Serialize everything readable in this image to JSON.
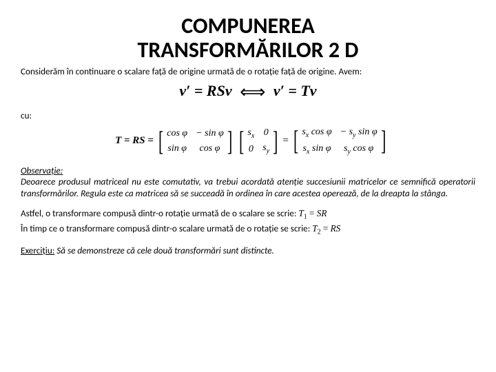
{
  "title_l1": "COMPUNEREA",
  "title_l2": "TRANSFORMĂRILOR 2 D",
  "intro": "Considerăm în continuare o scalare față de origine urmată de o rotație față de origine. Avem:",
  "formula1_left": "v′ = RSv",
  "formula1_right": "v′ = Tv",
  "cu": "cu:",
  "T_eq": "T = RS =",
  "m1_c1r1": "cos φ",
  "m1_c1r2": "sin φ",
  "m1_c2r1": "− sin φ",
  "m1_c2r2": "cos φ",
  "m2_c1r1": "sₓ",
  "m2_c1r2": "0",
  "m2_c2r1": "0",
  "m2_c2r2": "s_y",
  "eq": "=",
  "m3_c1r1": "sₓ cos φ",
  "m3_c1r2": "sₓ sin φ",
  "m3_c2r1": "− s_y sin φ",
  "m3_c2r2": "s_y cos φ",
  "obs_head": "Observație:",
  "obs_body": "Deoarece produsul matriceal nu este comutativ, va trebui acordată atenție succesiunii matricelor ce semnifică operatorii transformărilor. Regula este ca matricea să se succeadă în ordinea în care acestea operează, de la dreapta la stânga.",
  "line1": "Astfel, o transformare compusă dintr-o rotație urmată de o scalare se scrie:",
  "line1_math": "T₁ = SR",
  "line2": "În timp ce o transformare compusă dintr-o scalare urmată de o rotație se scrie:",
  "line2_math": "T₂ = RS",
  "ex_head": "Exercițiu:",
  "ex_body": "Să se demonstreze că cele două transformări sunt distincte."
}
